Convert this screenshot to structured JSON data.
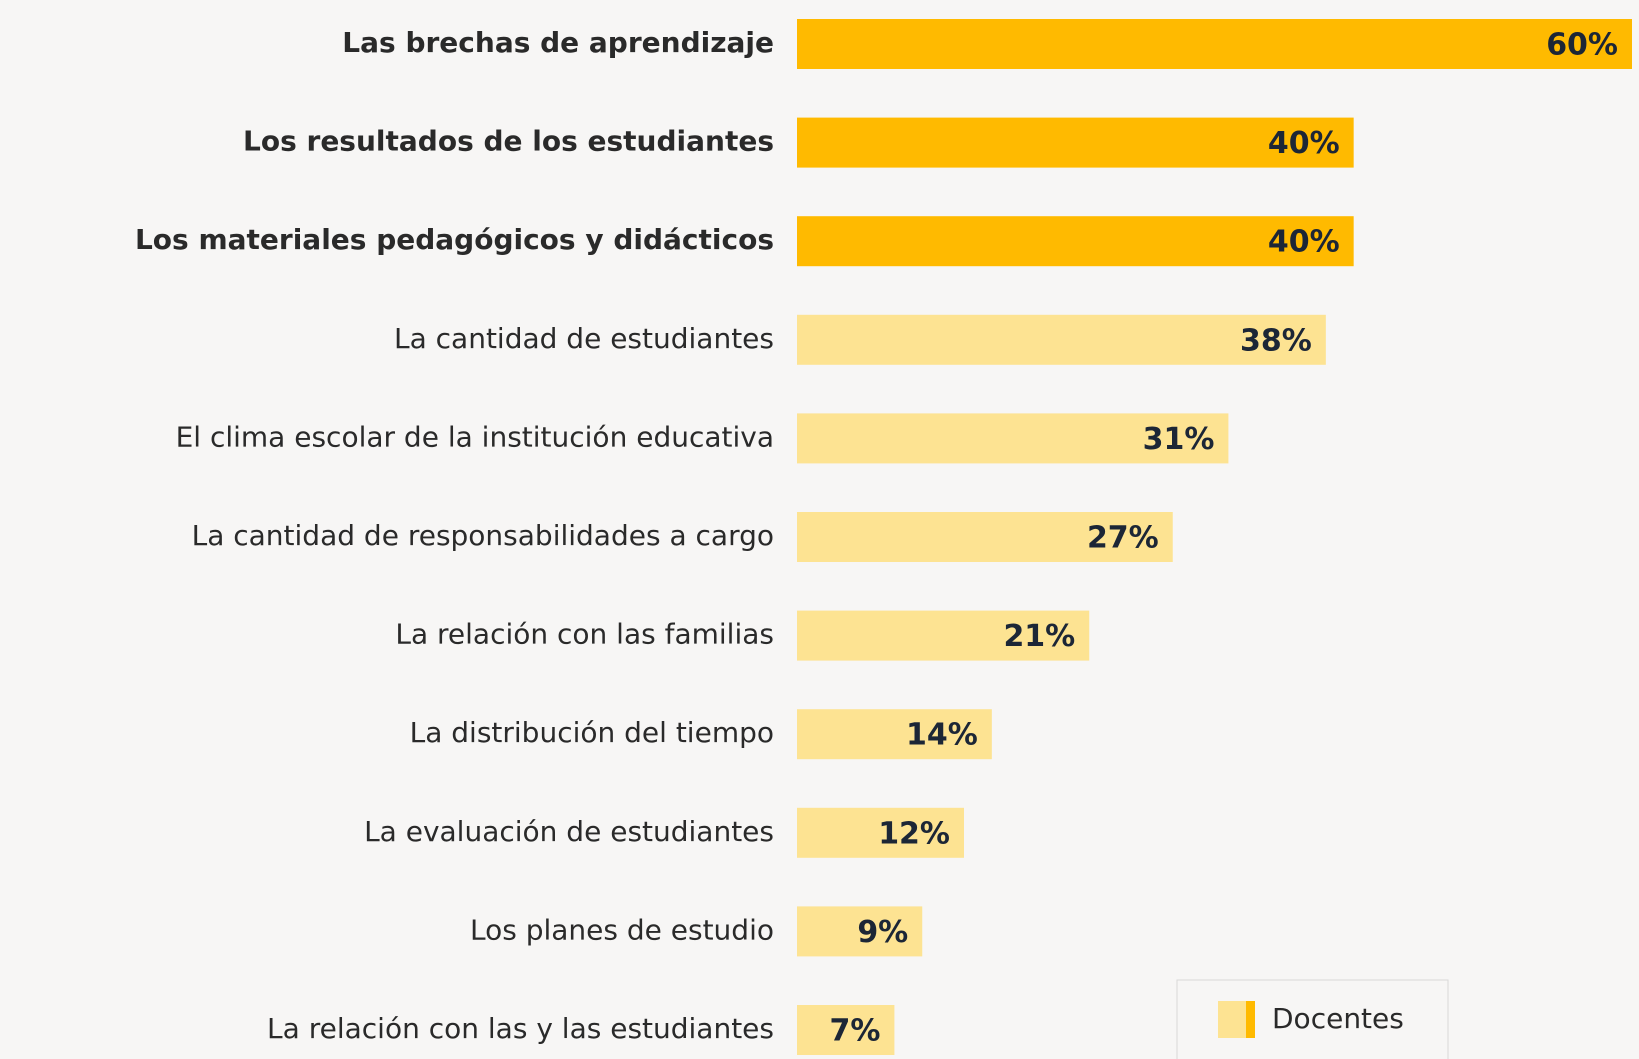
{
  "chart_data": {
    "type": "barh",
    "categories": [
      "Las brechas de aprendizaje",
      "Los resultados de los estudiantes",
      "Los materiales pedagógicos y didácticos",
      "La cantidad de estudiantes",
      "El clima escolar de la institución educativa",
      "La cantidad de responsabilidades a cargo",
      "La relación con las familias",
      "La distribución del tiempo",
      "La evaluación de estudiantes",
      "Los planes de estudio",
      "La relación con las y las estudiantes"
    ],
    "series": [
      {
        "name": "Docentes",
        "values": [
          60,
          40,
          40,
          38,
          31,
          27,
          21,
          14,
          12,
          9,
          7
        ],
        "value_labels": [
          "60%",
          "40%",
          "40%",
          "38%",
          "31%",
          "27%",
          "21%",
          "14%",
          "12%",
          "9%",
          "7%"
        ],
        "colors": [
          "#FFBA00",
          "#FFBA00",
          "#FFBA00",
          "#FDE392",
          "#FDE392",
          "#FDE392",
          "#FDE392",
          "#FDE392",
          "#FDE392",
          "#FDE392",
          "#FDE392"
        ]
      }
    ],
    "legend": "bottom-right"
  }
}
